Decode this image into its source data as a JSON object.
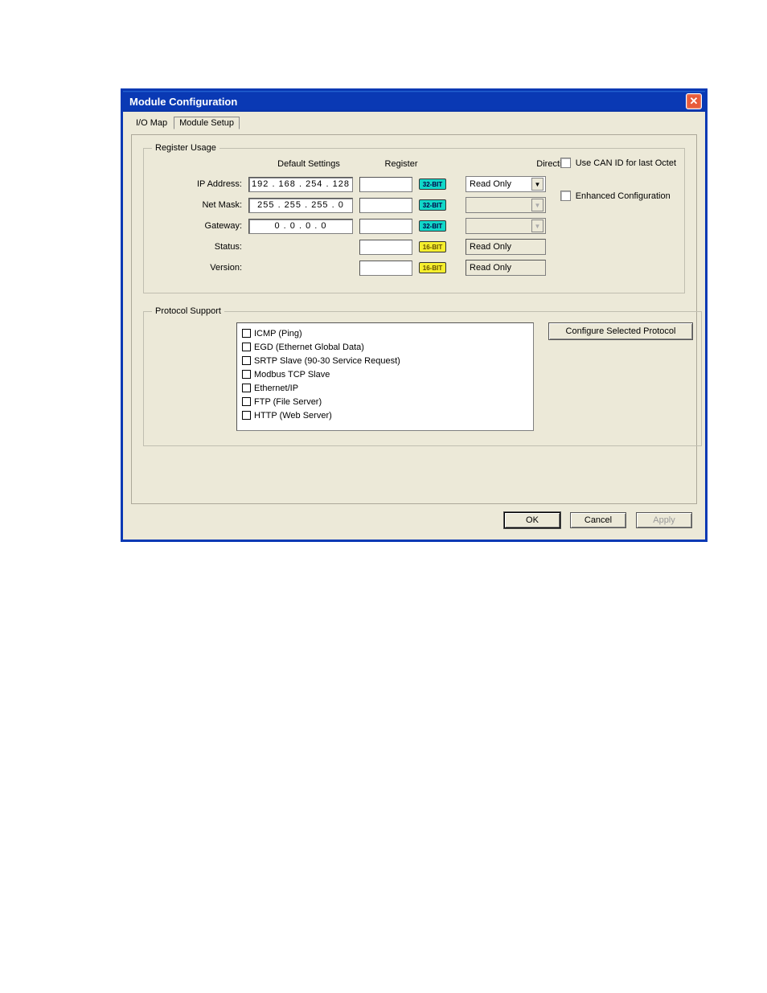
{
  "window": {
    "title": "Module Configuration"
  },
  "tabs": {
    "io_map": "I/O Map",
    "module_setup": "Module Setup"
  },
  "register_usage": {
    "legend": "Register Usage",
    "headers": {
      "default": "Default Settings",
      "register": "Register",
      "direction": "Direction"
    },
    "rows": {
      "ip": {
        "label": "IP Address:",
        "value": "192 . 168 . 254 . 128",
        "bit": "32-BIT",
        "direction": "Read Only",
        "dir_type": "dropdown_enabled"
      },
      "netmask": {
        "label": "Net Mask:",
        "value": "255 . 255 . 255 .   0",
        "bit": "32-BIT",
        "dir_type": "dropdown_disabled"
      },
      "gateway": {
        "label": "Gateway:",
        "value": "0  .   0  .   0  .   0",
        "bit": "32-BIT",
        "dir_type": "dropdown_disabled"
      },
      "status": {
        "label": "Status:",
        "bit": "16-BIT",
        "direction": "Read Only",
        "dir_type": "readonly"
      },
      "version": {
        "label": "Version:",
        "bit": "16-BIT",
        "direction": "Read Only",
        "dir_type": "readonly"
      }
    },
    "checkboxes": {
      "use_can_id": "Use CAN ID for last Octet",
      "enhanced_config": "Enhanced Configuration"
    }
  },
  "protocol_support": {
    "legend": "Protocol Support",
    "items": [
      "ICMP (Ping)",
      "EGD (Ethernet Global Data)",
      "SRTP Slave (90-30 Service Request)",
      "Modbus TCP Slave",
      "Ethernet/IP",
      "FTP (File Server)",
      "HTTP (Web Server)"
    ],
    "configure_btn": "Configure Selected Protocol"
  },
  "buttons": {
    "ok": "OK",
    "cancel": "Cancel",
    "apply": "Apply"
  },
  "colors": {
    "titlebar_start": "#2a6dd8",
    "titlebar_end": "#0a39b4",
    "dialog_bg": "#ece9d8",
    "close_bg": "#e85b3a",
    "bit32_bg": "#11d7c8",
    "bit16_bg": "#f5ee2d"
  }
}
